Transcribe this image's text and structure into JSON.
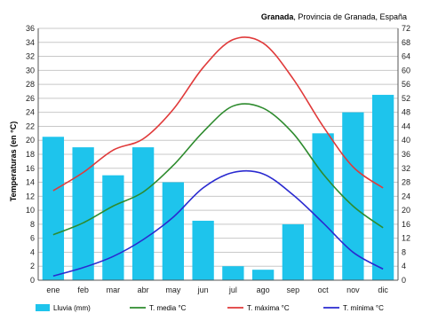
{
  "chart_data": {
    "type": "bar",
    "title_bold": "Granada",
    "title_rest": ", Provincia de Granada, España",
    "ylabel": "Temperaturas (en °C)",
    "categories": [
      "ene",
      "feb",
      "mar",
      "abr",
      "may",
      "jun",
      "jul",
      "ago",
      "sep",
      "oct",
      "nov",
      "dic"
    ],
    "ylim": [
      0,
      36
    ],
    "y_ticks": [
      0,
      2,
      4,
      6,
      8,
      10,
      12,
      14,
      16,
      18,
      20,
      22,
      24,
      26,
      28,
      30,
      32,
      34,
      36
    ],
    "y2lim": [
      0,
      72
    ],
    "y2_ticks": [
      0,
      4,
      8,
      12,
      16,
      20,
      24,
      28,
      32,
      36,
      40,
      44,
      48,
      52,
      56,
      60,
      64,
      68,
      72
    ],
    "grid": true,
    "legend_position": "bottom",
    "series": [
      {
        "name": "Lluvia (mm)",
        "kind": "bar",
        "axis": "right",
        "color": "#1ec4ec",
        "values": [
          41,
          38,
          30,
          38,
          28,
          17,
          4,
          3,
          16,
          42,
          48,
          53
        ]
      },
      {
        "name": "T. media °C",
        "kind": "line",
        "axis": "left",
        "color": "#2e8b2e",
        "values": [
          6.5,
          8.2,
          10.6,
          12.6,
          16.4,
          21.2,
          24.9,
          24.6,
          21.0,
          15.2,
          10.6,
          7.5
        ]
      },
      {
        "name": "T. máxima °C",
        "kind": "line",
        "axis": "left",
        "color": "#e03a3a",
        "values": [
          12.8,
          15.4,
          18.6,
          20.2,
          24.4,
          30.4,
          34.4,
          33.9,
          28.8,
          22.0,
          16.2,
          13.2
        ]
      },
      {
        "name": "T. mínima °C",
        "kind": "line",
        "axis": "left",
        "color": "#2a2ad0",
        "values": [
          0.6,
          1.8,
          3.4,
          5.8,
          9.0,
          13.2,
          15.4,
          15.2,
          12.2,
          8.2,
          4.0,
          1.6
        ]
      }
    ]
  }
}
